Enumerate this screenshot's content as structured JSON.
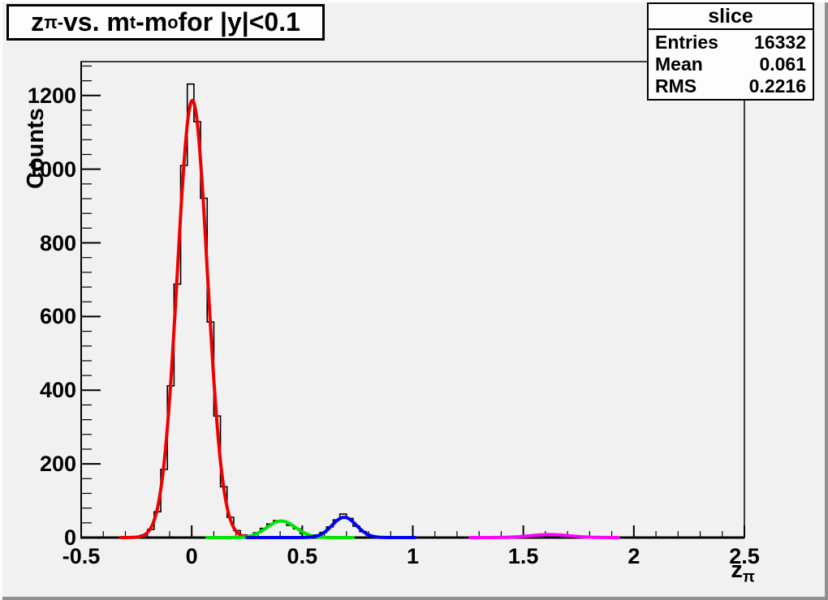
{
  "canvas": {
    "background": "#f1f1f1"
  },
  "title_box": {
    "parts": [
      {
        "text": "z"
      },
      {
        "text": "π-",
        "sub": true
      },
      {
        "text": " vs. m"
      },
      {
        "text": "t",
        "sub": true
      },
      {
        "text": "-m"
      },
      {
        "text": "o",
        "sub": true
      },
      {
        "text": " for |y|<0.1"
      }
    ]
  },
  "stats_box": {
    "title": "slice",
    "rows": [
      {
        "label": "Entries",
        "value": "16332"
      },
      {
        "label": "Mean",
        "value": "0.061"
      },
      {
        "label": "RMS",
        "value": "0.2216"
      }
    ]
  },
  "chart_data": {
    "type": "bar",
    "subtype": "root-histogram-with-gaussian-fits",
    "title": "z_{pi-} vs. m_t-m_o for |y|<0.1",
    "xlabel": "z_pi",
    "ylabel": "Counts",
    "xlabel_parts": [
      {
        "text": "z"
      },
      {
        "text": "π",
        "sub": true
      }
    ],
    "xlim": [
      -0.5,
      2.5
    ],
    "ylim": [
      0,
      1292
    ],
    "grid": false,
    "x_ticks": [
      {
        "v": -0.5,
        "label": "-0.5"
      },
      {
        "v": 0,
        "label": "0"
      },
      {
        "v": 0.5,
        "label": "0.5"
      },
      {
        "v": 1,
        "label": "1"
      },
      {
        "v": 1.5,
        "label": "1.5"
      },
      {
        "v": 2,
        "label": "2"
      },
      {
        "v": 2.5,
        "label": "2.5"
      }
    ],
    "x_minor_step": 0.1,
    "y_ticks": [
      {
        "v": 0,
        "label": "0"
      },
      {
        "v": 200,
        "label": "200"
      },
      {
        "v": 400,
        "label": "400"
      },
      {
        "v": 600,
        "label": "600"
      },
      {
        "v": 800,
        "label": "800"
      },
      {
        "v": 1000,
        "label": "1000"
      },
      {
        "v": 1200,
        "label": "1200"
      }
    ],
    "y_minor_step": 40,
    "histogram": {
      "color": "#000000",
      "x_start": -0.5,
      "bin_width": 0.03,
      "counts": [
        0,
        0,
        0,
        0,
        0,
        0,
        0,
        1,
        2,
        7,
        22,
        70,
        185,
        412,
        688,
        1010,
        1231,
        1129,
        921,
        585,
        330,
        138,
        55,
        19,
        7,
        6,
        13,
        25,
        37,
        46,
        43,
        33,
        24,
        11,
        6,
        7,
        14,
        29,
        48,
        64,
        52,
        31,
        16,
        6,
        2,
        1,
        0,
        0,
        0,
        0,
        0,
        0,
        0,
        0,
        0,
        0,
        0,
        0,
        0,
        0,
        0,
        0,
        0,
        0,
        1,
        2,
        3,
        5,
        6,
        8,
        9,
        8,
        7,
        5,
        4,
        2,
        1,
        1,
        0,
        0,
        0,
        0,
        0,
        0,
        0,
        0,
        0,
        0,
        0,
        0,
        0,
        0,
        0,
        0,
        0,
        0,
        0,
        0,
        0,
        0
      ]
    },
    "fits": [
      {
        "name": "peak1-gaussian",
        "color": "#ee0000",
        "amplitude": 1187,
        "mean": 0.003,
        "sigma": 0.068,
        "range": [
          -0.32,
          0.26
        ]
      },
      {
        "name": "peak2-gaussian",
        "color": "#00e400",
        "amplitude": 45,
        "mean": 0.405,
        "sigma": 0.065,
        "range": [
          0.07,
          0.73
        ]
      },
      {
        "name": "peak3-gaussian",
        "color": "#0000ee",
        "amplitude": 55,
        "mean": 0.69,
        "sigma": 0.055,
        "range": [
          0.25,
          1.01
        ]
      },
      {
        "name": "peak4-gaussian",
        "color": "#ff00ff",
        "amplitude": 8,
        "mean": 1.62,
        "sigma": 0.09,
        "range": [
          1.26,
          1.93
        ]
      }
    ]
  }
}
